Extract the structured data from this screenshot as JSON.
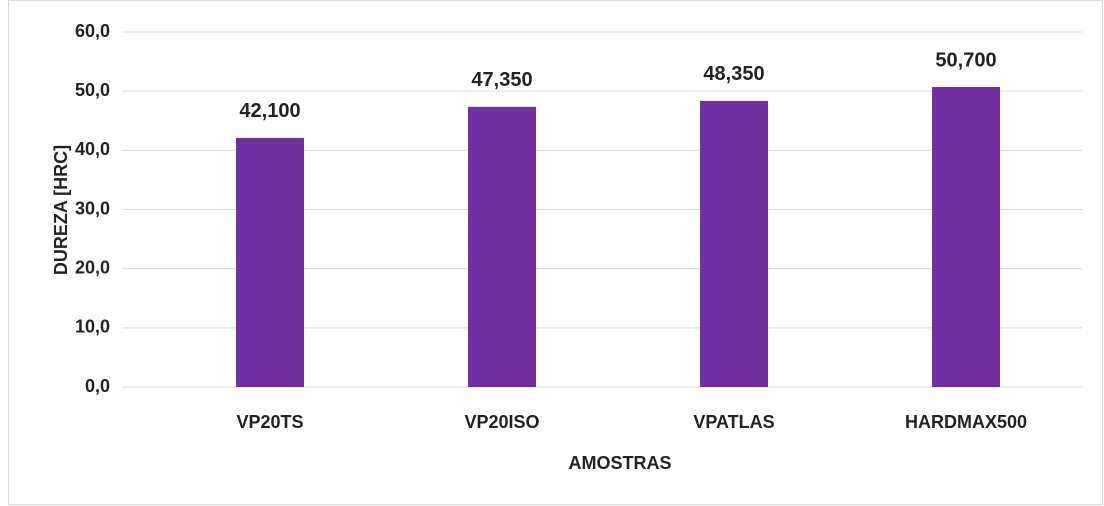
{
  "chart_data": {
    "type": "bar",
    "x_label": "AMOSTRAS",
    "y_label": "DUREZA [HRC]",
    "categories": [
      "VP20TS",
      "VP20ISO",
      "VPATLAS",
      "HARDMAX500"
    ],
    "values": [
      42.1,
      47.35,
      48.35,
      50.7
    ],
    "value_labels": [
      "42,100",
      "47,350",
      "48,350",
      "50,700"
    ],
    "color": "#7030a0",
    "ylim": [
      0,
      60
    ],
    "yticks": [
      {
        "value": 0,
        "label": "0,0"
      },
      {
        "value": 10,
        "label": "10,0"
      },
      {
        "value": 20,
        "label": "20,0"
      },
      {
        "value": 30,
        "label": "30,0"
      },
      {
        "value": 40,
        "label": "40,0"
      },
      {
        "value": 50,
        "label": "50,0"
      },
      {
        "value": 60,
        "label": "60,0"
      }
    ],
    "grid": true
  }
}
